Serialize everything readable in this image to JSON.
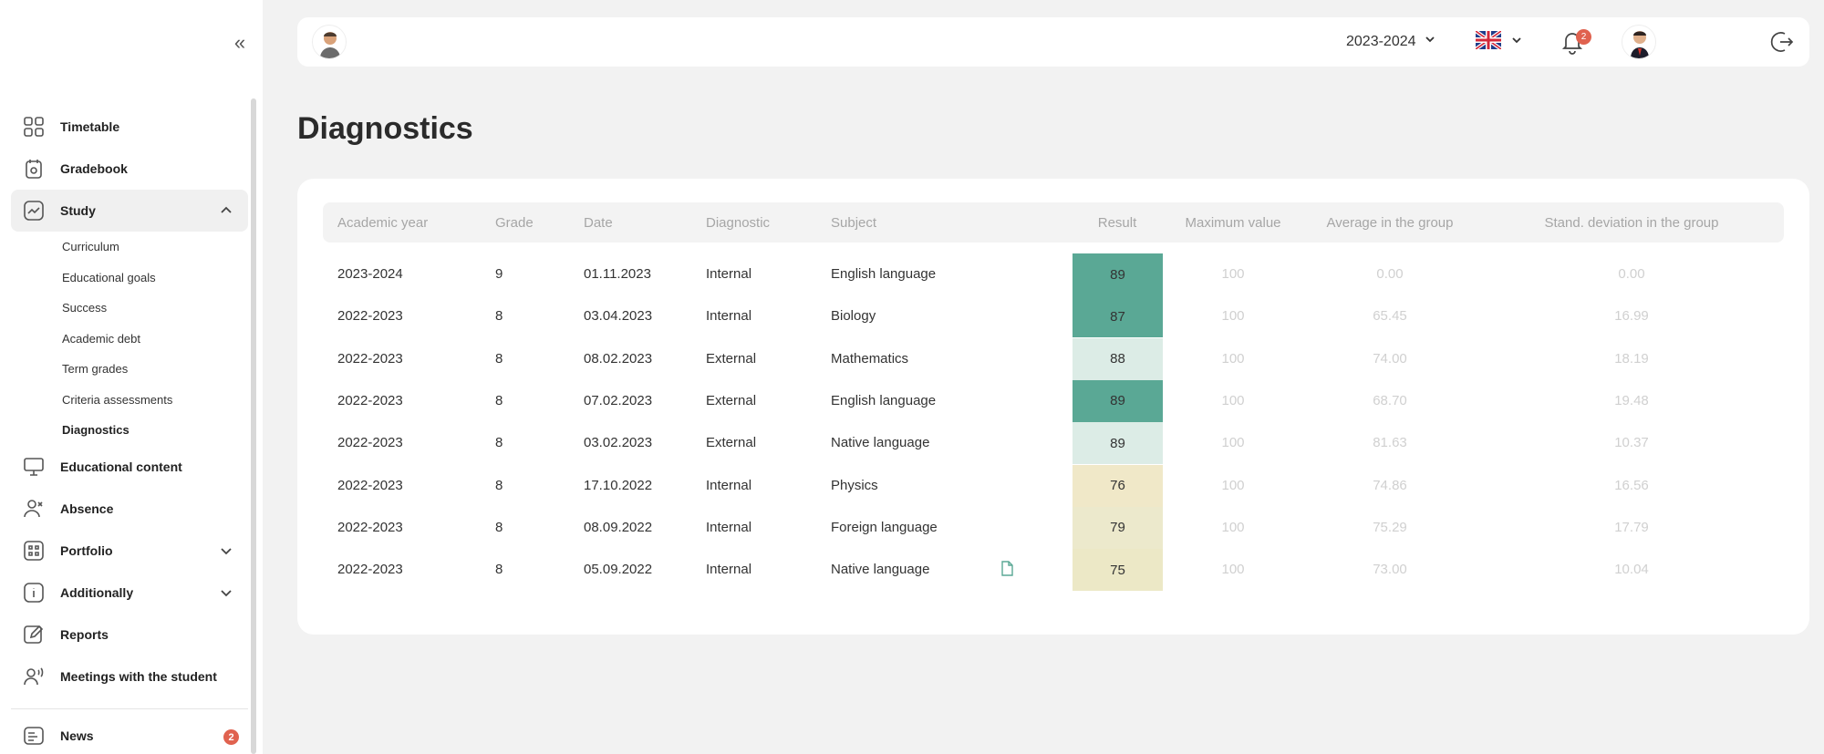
{
  "sidebar": {
    "items": [
      {
        "label": "Timetable",
        "icon": "grid-icon"
      },
      {
        "label": "Gradebook",
        "icon": "gradebook-icon"
      },
      {
        "label": "Study",
        "icon": "trend-icon",
        "expanded": true
      },
      {
        "label": "Educational content",
        "icon": "monitor-icon"
      },
      {
        "label": "Absence",
        "icon": "user-x-icon"
      },
      {
        "label": "Portfolio",
        "icon": "portfolio-icon"
      },
      {
        "label": "Additionally",
        "icon": "info-icon"
      },
      {
        "label": "Reports",
        "icon": "edit-icon"
      },
      {
        "label": "Meetings with the student",
        "icon": "user-voice-icon"
      },
      {
        "label": "News",
        "icon": "news-icon",
        "badge": "2"
      }
    ],
    "study_sub": [
      "Curriculum",
      "Educational goals",
      "Success",
      "Academic debt",
      "Term grades",
      "Criteria assessments",
      "Diagnostics"
    ]
  },
  "topbar": {
    "year": "2023-2024",
    "notifications": "2"
  },
  "page": {
    "title": "Diagnostics"
  },
  "table": {
    "headers": [
      "Academic year",
      "Grade",
      "Date",
      "Diagnostic",
      "Subject",
      "Result",
      "Maximum value",
      "Average in the group",
      "Stand. deviation in the group"
    ],
    "rows": [
      {
        "year": "2023-2024",
        "grade": "9",
        "date": "01.11.2023",
        "diag": "Internal",
        "subject": "English language",
        "result": "89",
        "max": "100",
        "avg": "0.00",
        "sd": "0.00",
        "color": "#5aa895"
      },
      {
        "year": "2022-2023",
        "grade": "8",
        "date": "03.04.2023",
        "diag": "Internal",
        "subject": "Biology",
        "result": "87",
        "max": "100",
        "avg": "65.45",
        "sd": "16.99",
        "color": "#5aa895"
      },
      {
        "year": "2022-2023",
        "grade": "8",
        "date": "08.02.2023",
        "diag": "External",
        "subject": "Mathematics",
        "result": "88",
        "max": "100",
        "avg": "74.00",
        "sd": "18.19",
        "color": "#dcece6"
      },
      {
        "year": "2022-2023",
        "grade": "8",
        "date": "07.02.2023",
        "diag": "External",
        "subject": "English language",
        "result": "89",
        "max": "100",
        "avg": "68.70",
        "sd": "19.48",
        "color": "#5aa895"
      },
      {
        "year": "2022-2023",
        "grade": "8",
        "date": "03.02.2023",
        "diag": "External",
        "subject": "Native language",
        "result": "89",
        "max": "100",
        "avg": "81.63",
        "sd": "10.37",
        "color": "#dcece6"
      },
      {
        "year": "2022-2023",
        "grade": "8",
        "date": "17.10.2022",
        "diag": "Internal",
        "subject": "Physics",
        "result": "76",
        "max": "100",
        "avg": "74.86",
        "sd": "16.56",
        "color": "#f0e8c8"
      },
      {
        "year": "2022-2023",
        "grade": "8",
        "date": "08.09.2022",
        "diag": "Internal",
        "subject": "Foreign language",
        "result": "79",
        "max": "100",
        "avg": "75.29",
        "sd": "17.79",
        "color": "#ece9cc"
      },
      {
        "year": "2022-2023",
        "grade": "8",
        "date": "05.09.2022",
        "diag": "Internal",
        "subject": "Native language",
        "result": "75",
        "max": "100",
        "avg": "73.00",
        "sd": "10.04",
        "color": "#ece8c6",
        "has_doc": true
      }
    ]
  }
}
